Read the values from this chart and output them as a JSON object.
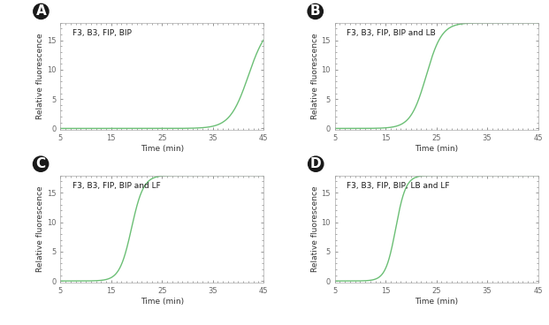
{
  "panels": [
    {
      "label": "A",
      "title": "F3, B3, FIP, BIP",
      "inflection": 42,
      "steepness": 0.55,
      "max_val": 18
    },
    {
      "label": "B",
      "title": "F3, B3, FIP, BIP and LB",
      "inflection": 23,
      "steepness": 0.65,
      "max_val": 18
    },
    {
      "label": "C",
      "title": "F3, B3, FIP, BIP and LF",
      "inflection": 19,
      "steepness": 0.85,
      "max_val": 18
    },
    {
      "label": "D",
      "title": "F3, B3, FIP, BIP, LB and LF",
      "inflection": 17,
      "steepness": 1.0,
      "max_val": 18
    }
  ],
  "xmin": 5,
  "xmax": 45,
  "ymin": -0.3,
  "ymax": 18,
  "yticks": [
    0,
    5,
    10,
    15
  ],
  "xticks": [
    5,
    15,
    25,
    35,
    45
  ],
  "xtick_labels": [
    "5",
    "15",
    "25",
    "35",
    "45"
  ],
  "xlabel": "Time (min)",
  "ylabel": "Relative fluorescence",
  "line_color": "#6bbf75",
  "background_color": "#ffffff",
  "panel_label_bg": "#1a1a1a",
  "panel_label_fg": "#ffffff",
  "spine_color": "#aaaaaa",
  "tick_color": "#666666",
  "label_fontsize": 6.5,
  "title_fontsize": 6.5,
  "tick_fontsize": 6,
  "panel_letter_fontsize": 11
}
